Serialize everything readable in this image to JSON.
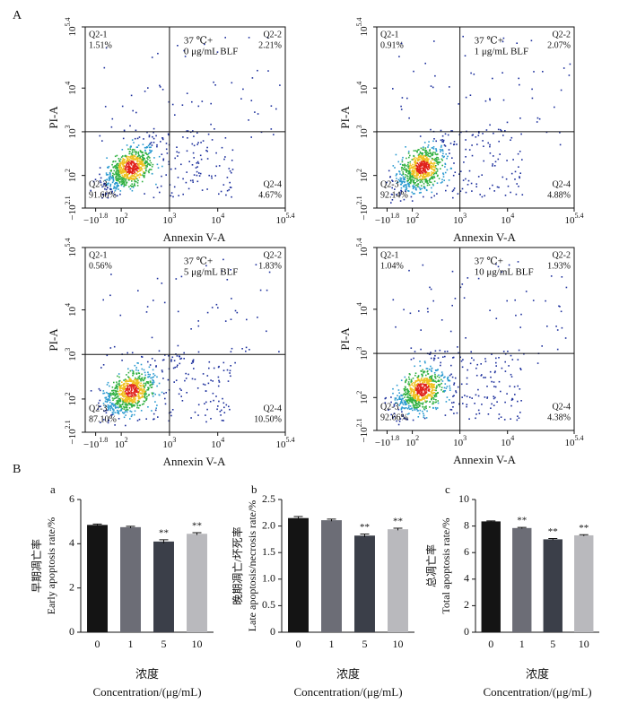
{
  "panel_labels": [
    "A",
    "B"
  ],
  "chart_data": [
    {
      "type": "flow",
      "condition": [
        "37 ℃+",
        "0 μg/mL BLF"
      ],
      "xlabel": "Annexin V-A",
      "ylabel": "PI-A",
      "xscale": "biexponential",
      "yscale": "biexponential",
      "xlim": [
        -2.1,
        5.4
      ],
      "ylim": [
        -2.1,
        5.4
      ],
      "xticks": [
        {
          "value": -1.8,
          "label": "−10^1.8"
        },
        {
          "value": 2,
          "label": "10^2"
        },
        {
          "value": 3,
          "label": "10^3"
        },
        {
          "value": 4,
          "label": "10^4"
        },
        {
          "value": 5.4,
          "label": "10^5.4"
        }
      ],
      "yticks": [
        {
          "value": -2.1,
          "label": "−10^2.1"
        },
        {
          "value": 2,
          "label": "10^2"
        },
        {
          "value": 3,
          "label": "10^3"
        },
        {
          "value": 4,
          "label": "10^4"
        },
        {
          "value": 5.4,
          "label": "10^5.4"
        }
      ],
      "gate": [
        3,
        3
      ],
      "quadrants": [
        "Q2-1",
        "Q2-2",
        "Q2-3",
        "Q2-4"
      ],
      "values": [
        1.51,
        2.21,
        91.6,
        4.67
      ],
      "value_labels": [
        "1.51%",
        "2.21%",
        "91.60%",
        "4.67%"
      ]
    },
    {
      "type": "flow",
      "condition": [
        "37 ℃+",
        "1 μg/mL BLF"
      ],
      "xlabel": "Annexin V-A",
      "ylabel": "PI-A",
      "xscale": "biexponential",
      "yscale": "biexponential",
      "xlim": [
        -2.1,
        5.4
      ],
      "ylim": [
        -2.1,
        5.4
      ],
      "xticks": [
        {
          "value": -1.8,
          "label": "−10^1.8"
        },
        {
          "value": 2,
          "label": "10^2"
        },
        {
          "value": 3,
          "label": "10^3"
        },
        {
          "value": 4,
          "label": "10^4"
        },
        {
          "value": 5.4,
          "label": "10^5.4"
        }
      ],
      "yticks": [
        {
          "value": -2.1,
          "label": "−10^2.1"
        },
        {
          "value": 2,
          "label": "10^2"
        },
        {
          "value": 3,
          "label": "10^3"
        },
        {
          "value": 4,
          "label": "10^4"
        },
        {
          "value": 5.4,
          "label": "10^5.4"
        }
      ],
      "gate": [
        3,
        3
      ],
      "quadrants": [
        "Q2-1",
        "Q2-2",
        "Q2-3",
        "Q2-4"
      ],
      "values": [
        0.91,
        2.07,
        92.14,
        4.88
      ],
      "value_labels": [
        "0.91%",
        "2.07%",
        "92.14%",
        "4.88%"
      ]
    },
    {
      "type": "flow",
      "condition": [
        "37 ℃+",
        "5 μg/mL BLF"
      ],
      "xlabel": "Annexin V-A",
      "ylabel": "PI-A",
      "xscale": "biexponential",
      "yscale": "biexponential",
      "xlim": [
        -2.1,
        5.4
      ],
      "ylim": [
        -2.1,
        5.4
      ],
      "xticks": [
        {
          "value": -1.8,
          "label": "−10^1.8"
        },
        {
          "value": 2,
          "label": "10^2"
        },
        {
          "value": 3,
          "label": "10^3"
        },
        {
          "value": 4,
          "label": "10^4"
        },
        {
          "value": 5.4,
          "label": "10^5.4"
        }
      ],
      "yticks": [
        {
          "value": -2.1,
          "label": "−10^2.1"
        },
        {
          "value": 2,
          "label": "10^2"
        },
        {
          "value": 3,
          "label": "10^3"
        },
        {
          "value": 4,
          "label": "10^4"
        },
        {
          "value": 5.4,
          "label": "10^5.4"
        }
      ],
      "gate": [
        3,
        3
      ],
      "quadrants": [
        "Q2-1",
        "Q2-2",
        "Q2-3",
        "Q2-4"
      ],
      "values": [
        0.56,
        1.83,
        87.1,
        10.5
      ],
      "value_labels": [
        "0.56%",
        "1.83%",
        "87.10%",
        "10.50%"
      ]
    },
    {
      "type": "flow",
      "condition": [
        "37 ℃+",
        "10 μg/mL BLF"
      ],
      "xlabel": "Annexin V-A",
      "ylabel": "PI-A",
      "xscale": "biexponential",
      "yscale": "biexponential",
      "xlim": [
        -2.1,
        5.4
      ],
      "ylim": [
        -2.1,
        5.4
      ],
      "xticks": [
        {
          "value": -1.8,
          "label": "−10^1.8"
        },
        {
          "value": 2,
          "label": "10^2"
        },
        {
          "value": 3,
          "label": "10^3"
        },
        {
          "value": 4,
          "label": "10^4"
        },
        {
          "value": 5.4,
          "label": "10^5.4"
        }
      ],
      "yticks": [
        {
          "value": -2.1,
          "label": "−10^2.1"
        },
        {
          "value": 2,
          "label": "10^2"
        },
        {
          "value": 3,
          "label": "10^3"
        },
        {
          "value": 4,
          "label": "10^4"
        },
        {
          "value": 5.4,
          "label": "10^5.4"
        }
      ],
      "gate": [
        3,
        3
      ],
      "quadrants": [
        "Q2-1",
        "Q2-2",
        "Q2-3",
        "Q2-4"
      ],
      "values": [
        1.04,
        1.93,
        92.66,
        4.38
      ],
      "value_labels": [
        "1.04%",
        "1.93%",
        "92.66%",
        "4.38%"
      ]
    },
    {
      "type": "bar",
      "panel": "a",
      "ylabel": [
        "早期凋亡率",
        "Early apoptosis rate/%"
      ],
      "xlabel": [
        "浓度",
        "Concentration/(μg/mL)"
      ],
      "categories": [
        "0",
        "1",
        "5",
        "10"
      ],
      "values": [
        4.85,
        4.75,
        4.1,
        4.45
      ],
      "errors": [
        0.04,
        0.04,
        0.08,
        0.05
      ],
      "significance": [
        null,
        null,
        "**",
        "**"
      ],
      "colors": [
        "#141414",
        "#6c6d76",
        "#3b3f49",
        "#b9b9bd"
      ],
      "ylim": [
        0,
        6
      ],
      "yticks": [
        0,
        2,
        4,
        6
      ]
    },
    {
      "type": "bar",
      "panel": "b",
      "ylabel": [
        "晚期凋亡/坏死率",
        "Late apoptosis/necrosis rate/%"
      ],
      "xlabel": [
        "浓度",
        "Concentration/(μg/mL)"
      ],
      "categories": [
        "0",
        "1",
        "5",
        "10"
      ],
      "values": [
        2.15,
        2.11,
        1.82,
        1.94
      ],
      "errors": [
        0.03,
        0.02,
        0.03,
        0.02
      ],
      "significance": [
        null,
        null,
        "**",
        "**"
      ],
      "colors": [
        "#141414",
        "#6c6d76",
        "#3b3f49",
        "#b9b9bd"
      ],
      "ylim": [
        0,
        2.5
      ],
      "yticks": [
        0,
        0.5,
        {
          "value": 1,
          "label": "1.0"
        },
        1.5,
        {
          "value": 2,
          "label": "2.0"
        },
        2.5
      ]
    },
    {
      "type": "bar",
      "panel": "c",
      "ylabel": [
        "总凋亡率",
        "Total apoptosis rate/%"
      ],
      "xlabel": [
        "浓度",
        "Concentration/(μg/mL)"
      ],
      "categories": [
        "0",
        "1",
        "5",
        "10"
      ],
      "values": [
        8.35,
        7.85,
        7.0,
        7.3
      ],
      "errors": [
        0.04,
        0.05,
        0.06,
        0.05
      ],
      "significance": [
        null,
        "**",
        "**",
        "**"
      ],
      "colors": [
        "#141414",
        "#6c6d76",
        "#3b3f49",
        "#b9b9bd"
      ],
      "ylim": [
        0,
        10
      ],
      "yticks": [
        0,
        2,
        4,
        6,
        8,
        10
      ]
    }
  ]
}
